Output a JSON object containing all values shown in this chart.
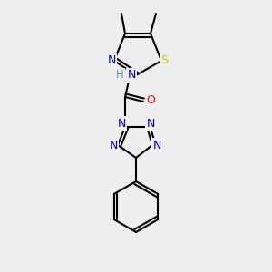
{
  "bg_color": "#eeeeee",
  "atom_colors": {
    "C": "#000000",
    "N": "#0000cc",
    "O": "#ff0000",
    "S": "#cccc00",
    "H": "#5f9ea0"
  },
  "figsize": [
    3.0,
    3.0
  ],
  "dpi": 100
}
